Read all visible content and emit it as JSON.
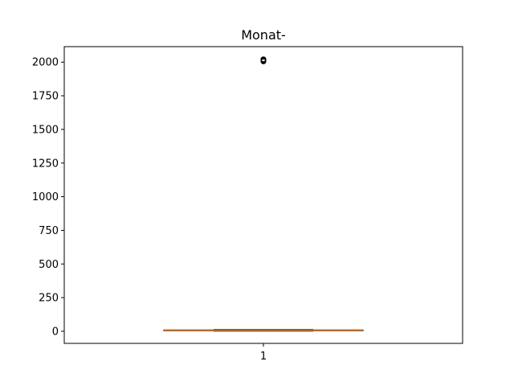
{
  "chart_data": {
    "type": "box",
    "title": "Monat-",
    "xlabel": "",
    "ylabel": "",
    "categories": [
      "1"
    ],
    "ylim": [
      -90,
      2115
    ],
    "yticks": [
      0,
      250,
      500,
      750,
      1000,
      1250,
      1500,
      1750,
      2000
    ],
    "grid": false,
    "legend": "none",
    "boxes": [
      {
        "category": "1",
        "min": 1,
        "q1": 3,
        "median": 6,
        "q3": 10,
        "max": 12,
        "outliers_high": [
          2005,
          2008,
          2010,
          2012,
          2014,
          2016,
          2018,
          2020,
          2021
        ]
      }
    ],
    "colors": {
      "box": "#000000",
      "median": "#ff7f0e",
      "axes": "#000000",
      "background": "#ffffff"
    }
  }
}
